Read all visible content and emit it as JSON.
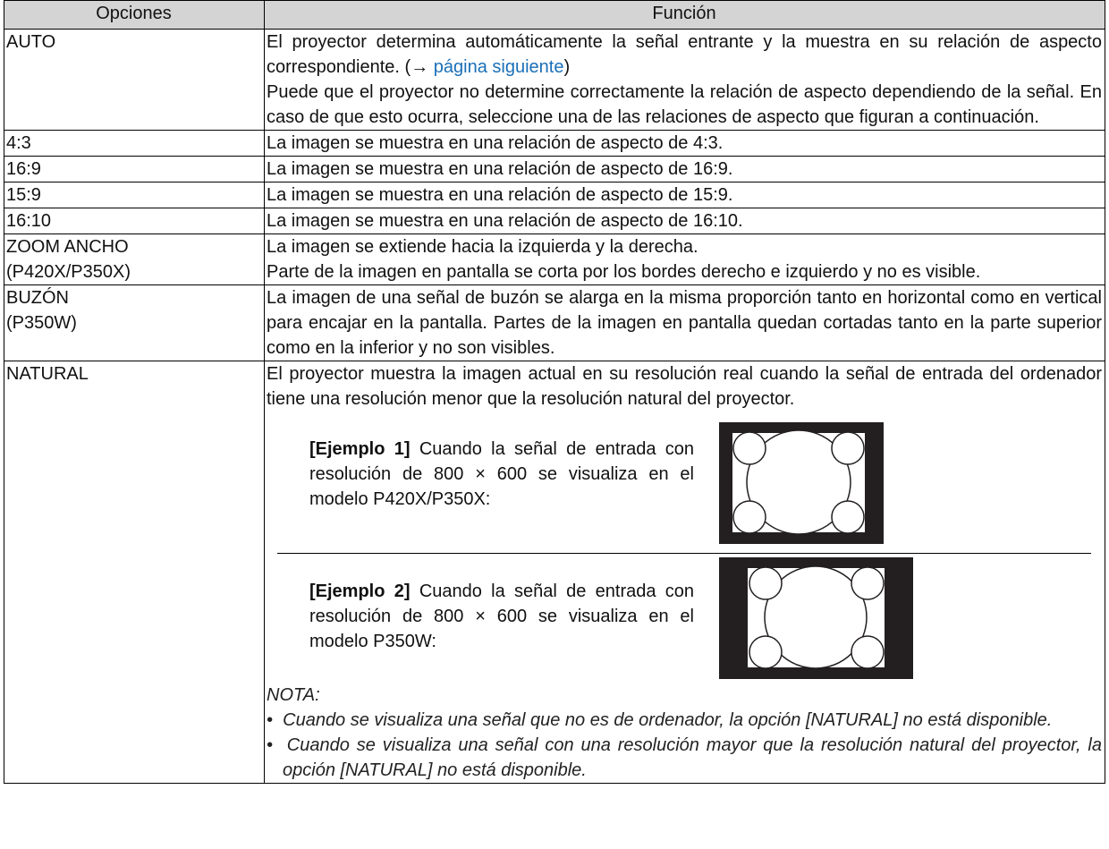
{
  "table": {
    "headers": [
      "Opciones",
      "Función"
    ],
    "rows": [
      {
        "option": [
          "AUTO"
        ],
        "intro": "El proyector determina automáticamente la señal entrante y la muestra en su relación de aspecto correspondiente. (→",
        "link": "página siguiente",
        "close": ")",
        "paragraphs": [
          "Puede que el proyector no determine correctamente la relación de aspecto dependiendo de la señal. En caso de que esto ocurra, seleccione una de las relaciones de aspecto que figuran a continuación."
        ]
      },
      {
        "option": [
          "4:3"
        ],
        "paragraphs": [
          "La imagen se muestra en una relación de aspecto de 4:3."
        ]
      },
      {
        "option": [
          "16:9"
        ],
        "paragraphs": [
          "La imagen se muestra en una relación de aspecto de 16:9."
        ]
      },
      {
        "option": [
          "15:9"
        ],
        "paragraphs": [
          "La imagen se muestra en una relación de aspecto de 15:9."
        ]
      },
      {
        "option": [
          "16:10"
        ],
        "paragraphs": [
          "La imagen se muestra en una relación de aspecto de 16:10."
        ]
      },
      {
        "option": [
          "ZOOM ANCHO",
          "(P420X/P350X)"
        ],
        "paragraphs": [
          "La imagen se extiende hacia la izquierda y la derecha.",
          "Parte de la imagen en pantalla se corta por los bordes derecho e izquierdo y no es visible."
        ]
      },
      {
        "option": [
          "BUZÓN",
          "(P350W)"
        ],
        "paragraphs": [
          "La imagen de una señal de buzón se alarga en la misma proporción tanto en horizontal como en vertical para encajar en la pantalla. Partes de la imagen en pantalla quedan cortadas tanto en la parte superior como en la inferior y no son visibles."
        ]
      },
      {
        "option": [
          "NATURAL"
        ],
        "paragraphs": [
          "El proyector muestra la imagen actual en su resolución real cuando la señal de entrada del ordenador tiene una resolución menor que la resolución natural del proyector."
        ],
        "examples": [
          {
            "label": "[Ejemplo 1]",
            "text": "Cuando la señal de entrada con resolución de 800 × 600 se visualiza en el modelo P420X/P350X:"
          },
          {
            "label": "[Ejemplo 2]",
            "text": "Cuando la señal de entrada con resolución de 800 × 600 se visualiza en el modelo P350W:"
          }
        ],
        "note": {
          "title": "NOTA:",
          "items": [
            "Cuando se visualiza una señal que no es de ordenador, la opción [NATURAL] no está disponible.",
            "Cuando se visualiza una señal con una resolución mayor que la resolución natural del proyector, la opción [NATURAL] no está disponible."
          ]
        }
      }
    ]
  }
}
